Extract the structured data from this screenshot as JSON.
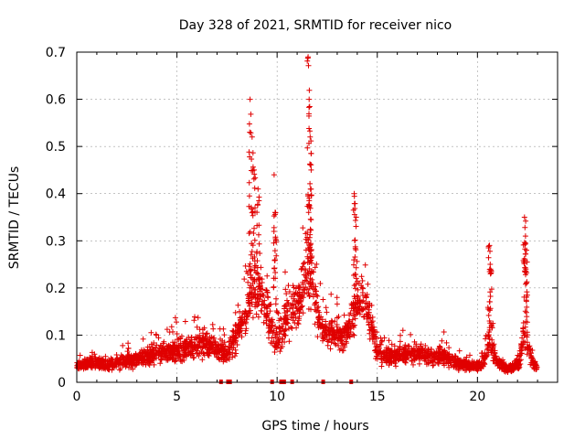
{
  "chart_data": {
    "type": "scatter",
    "title": "Day 328 of 2021, SRMTID for receiver nico",
    "xlabel": "GPS time / hours",
    "ylabel": "SRMTID / TECUs",
    "xlim": [
      0,
      24
    ],
    "ylim": [
      0,
      0.7
    ],
    "x_ticks": [
      0,
      5,
      10,
      15,
      20
    ],
    "x_tick_labels": [
      "0",
      "5",
      "10",
      "15",
      "20"
    ],
    "y_ticks": [
      0,
      0.1,
      0.2,
      0.3,
      0.4,
      0.5,
      0.6,
      0.7
    ],
    "y_tick_labels": [
      "0",
      "0.1",
      "0.2",
      "0.3",
      "0.4",
      "0.5",
      "0.6",
      "0.7"
    ],
    "grid": true,
    "marker": "+",
    "series_color": "#e00000",
    "series": [
      {
        "name": "SRMTID",
        "envelope_hours": [
          0.0,
          0.5,
          1.0,
          1.5,
          2.0,
          2.5,
          3.0,
          3.5,
          4.0,
          4.5,
          5.0,
          5.5,
          6.0,
          6.5,
          7.0,
          7.5,
          8.0,
          8.3,
          8.6,
          8.8,
          9.0,
          9.3,
          9.6,
          9.9,
          10.2,
          10.5,
          10.8,
          11.0,
          11.3,
          11.5,
          11.7,
          12.0,
          12.3,
          12.6,
          13.0,
          13.3,
          13.6,
          13.9,
          14.2,
          14.5,
          14.8,
          15.0,
          15.5,
          16.0,
          16.5,
          17.0,
          17.5,
          18.0,
          18.5,
          19.0,
          19.5,
          20.0,
          20.3,
          20.6,
          20.9,
          21.2,
          21.5,
          21.8,
          22.1,
          22.3,
          22.5,
          22.8,
          23.0
        ],
        "envelope_base": [
          0.035,
          0.04,
          0.04,
          0.035,
          0.04,
          0.045,
          0.05,
          0.055,
          0.06,
          0.065,
          0.07,
          0.07,
          0.075,
          0.08,
          0.07,
          0.06,
          0.1,
          0.13,
          0.18,
          0.2,
          0.2,
          0.18,
          0.14,
          0.09,
          0.1,
          0.14,
          0.16,
          0.15,
          0.2,
          0.26,
          0.22,
          0.15,
          0.11,
          0.1,
          0.1,
          0.09,
          0.12,
          0.16,
          0.17,
          0.16,
          0.1,
          0.06,
          0.055,
          0.06,
          0.06,
          0.06,
          0.055,
          0.055,
          0.05,
          0.04,
          0.035,
          0.035,
          0.04,
          0.09,
          0.05,
          0.035,
          0.03,
          0.03,
          0.04,
          0.1,
          0.08,
          0.035,
          0.03
        ],
        "envelope_spread": [
          0.015,
          0.02,
          0.02,
          0.015,
          0.02,
          0.02,
          0.025,
          0.025,
          0.03,
          0.03,
          0.04,
          0.035,
          0.035,
          0.035,
          0.03,
          0.03,
          0.04,
          0.05,
          0.08,
          0.1,
          0.08,
          0.08,
          0.07,
          0.05,
          0.06,
          0.07,
          0.07,
          0.07,
          0.08,
          0.12,
          0.09,
          0.06,
          0.04,
          0.04,
          0.04,
          0.035,
          0.05,
          0.07,
          0.07,
          0.06,
          0.04,
          0.03,
          0.025,
          0.03,
          0.03,
          0.03,
          0.025,
          0.025,
          0.025,
          0.02,
          0.015,
          0.015,
          0.02,
          0.05,
          0.02,
          0.015,
          0.012,
          0.012,
          0.02,
          0.06,
          0.04,
          0.015,
          0.012
        ],
        "peaks": [
          {
            "hour": 8.65,
            "value": 0.6
          },
          {
            "hour": 8.75,
            "value": 0.52
          },
          {
            "hour": 8.85,
            "value": 0.45
          },
          {
            "hour": 9.05,
            "value": 0.41
          },
          {
            "hour": 9.85,
            "value": 0.44
          },
          {
            "hour": 9.9,
            "value": 0.36
          },
          {
            "hour": 11.55,
            "value": 0.69
          },
          {
            "hour": 11.6,
            "value": 0.6
          },
          {
            "hour": 11.65,
            "value": 0.52
          },
          {
            "hour": 11.7,
            "value": 0.45
          },
          {
            "hour": 13.85,
            "value": 0.4
          },
          {
            "hour": 13.95,
            "value": 0.35
          },
          {
            "hour": 20.6,
            "value": 0.29
          },
          {
            "hour": 20.65,
            "value": 0.24
          },
          {
            "hour": 22.35,
            "value": 0.35
          },
          {
            "hour": 22.4,
            "value": 0.31
          },
          {
            "hour": 22.45,
            "value": 0.28
          }
        ],
        "zero_markers_hours": [
          7.2,
          7.55,
          7.65,
          9.75,
          10.2,
          10.35,
          10.75,
          12.3,
          13.7
        ]
      }
    ]
  }
}
